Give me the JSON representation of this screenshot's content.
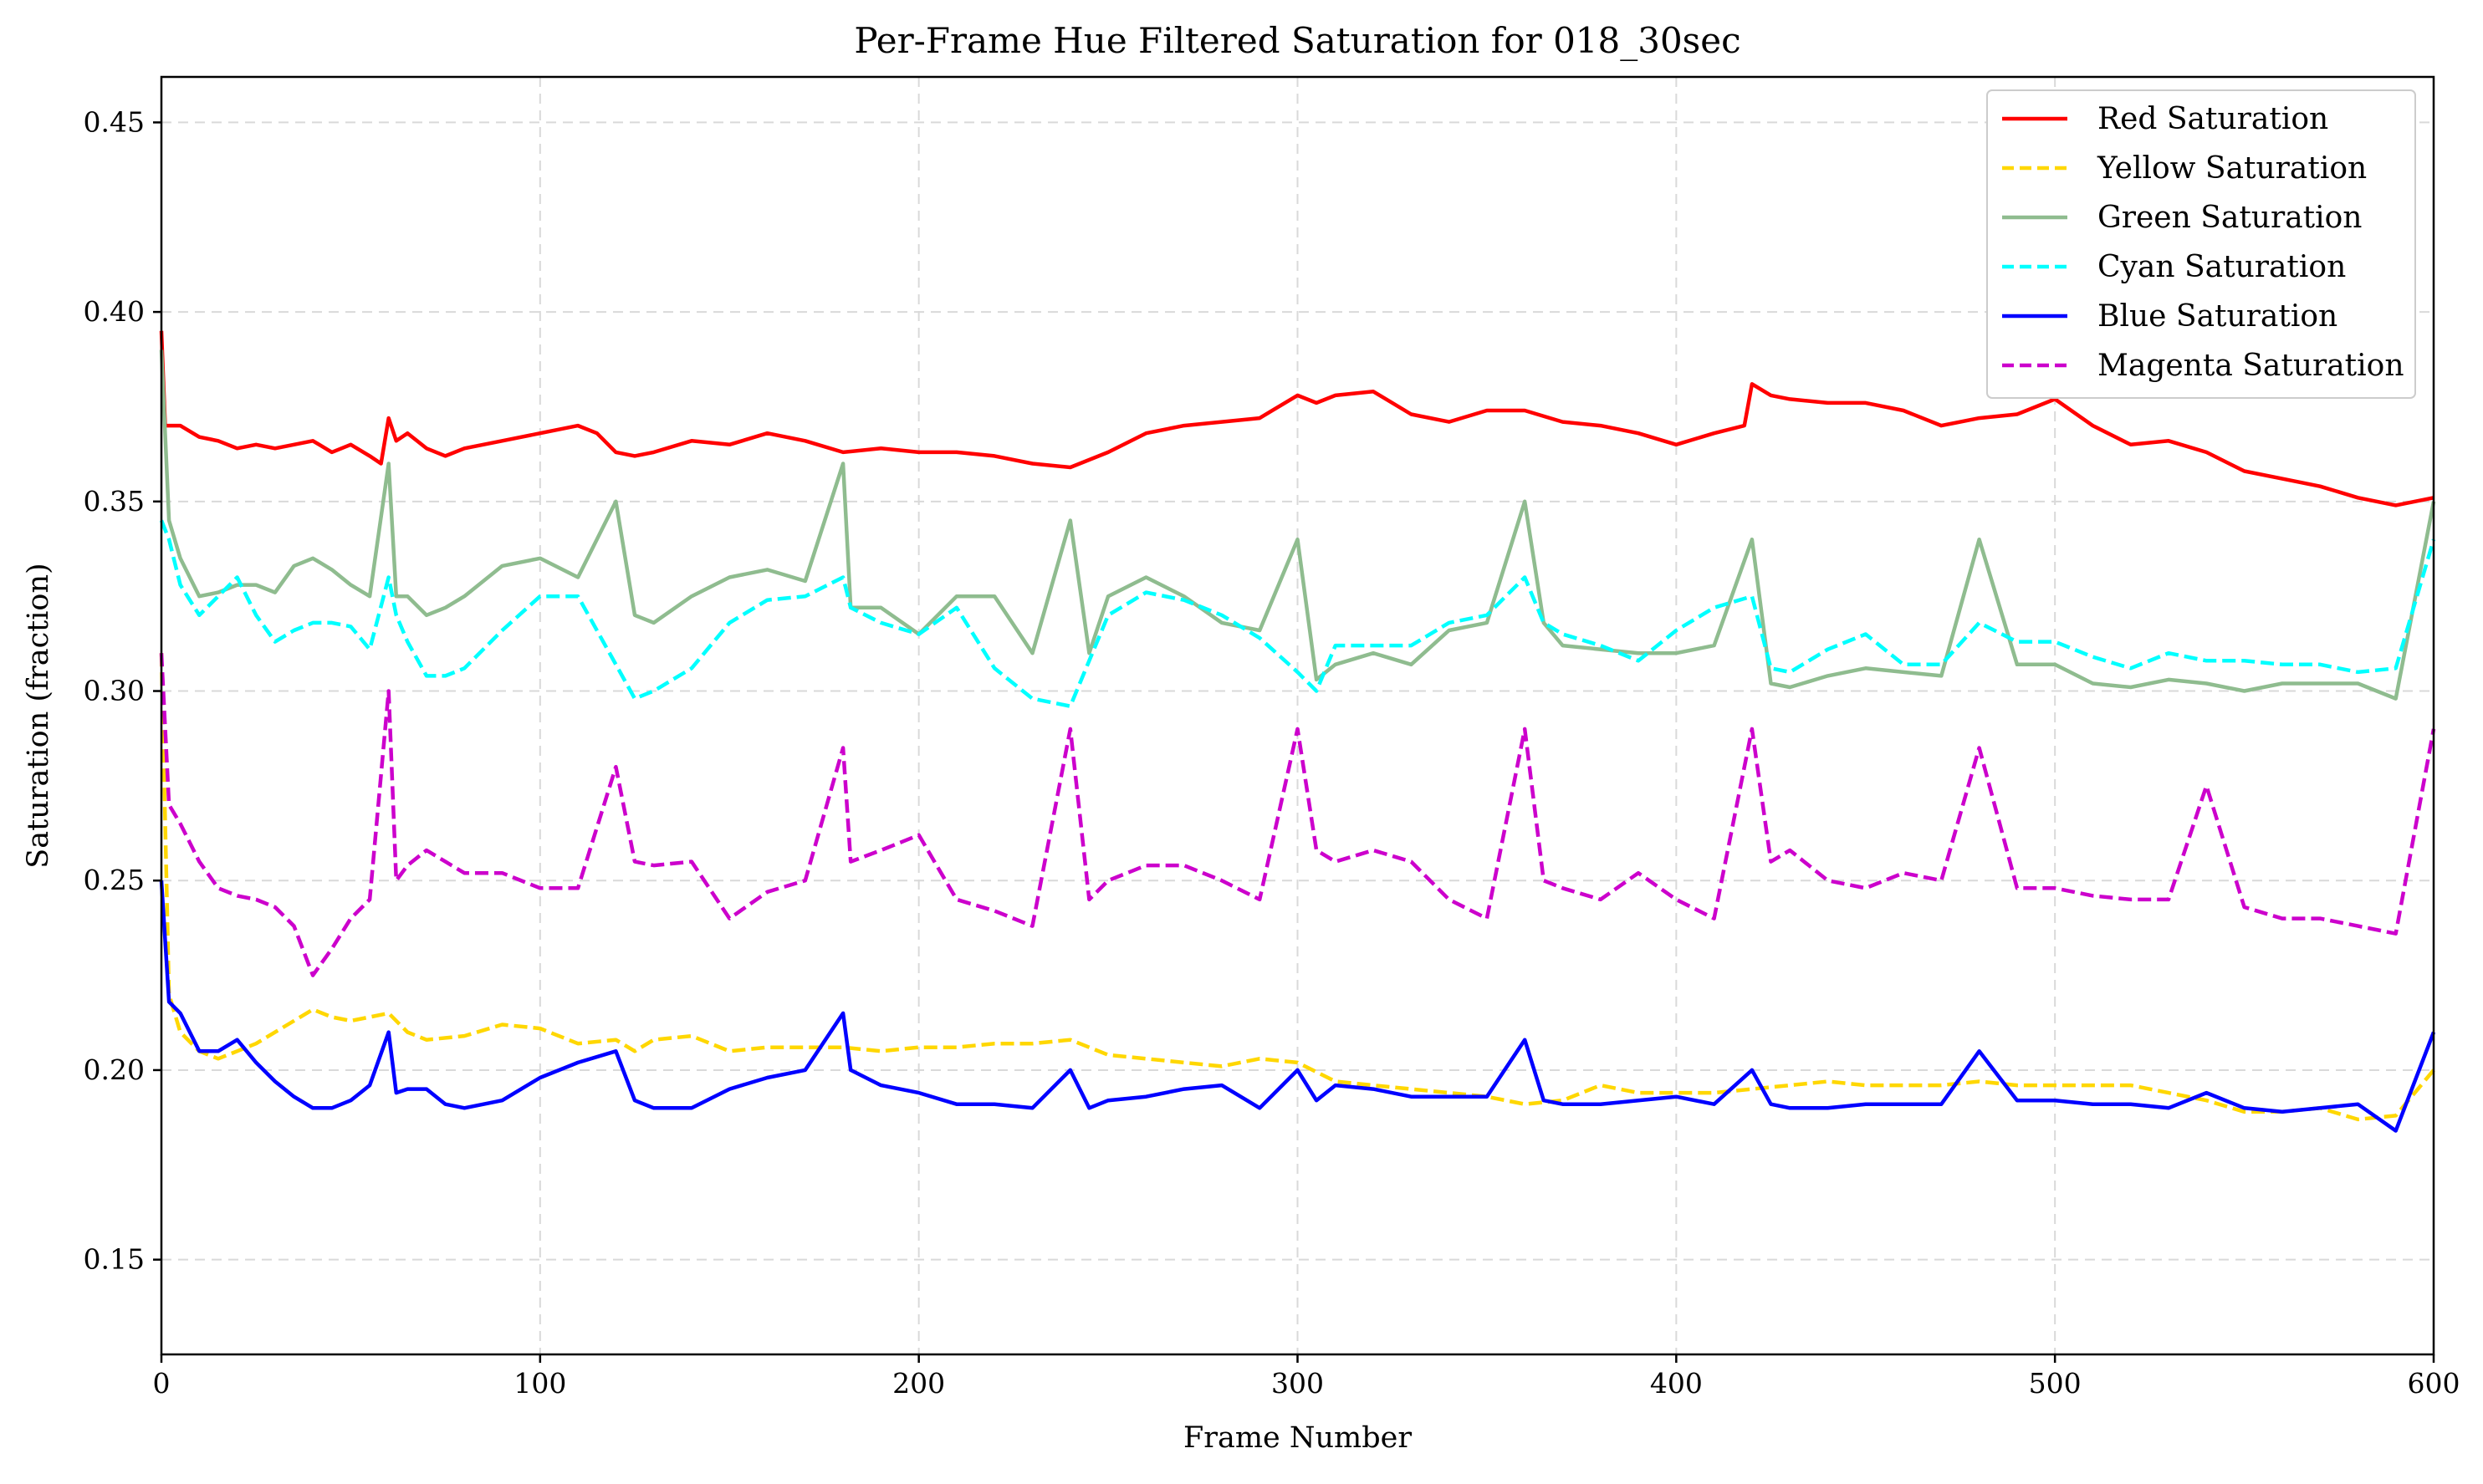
{
  "chart_data": {
    "type": "line",
    "title": "Per-Frame Hue Filtered Saturation for 018_30sec",
    "xlabel": "Frame Number",
    "ylabel": "Saturation (fraction)",
    "xlim": [
      0,
      600
    ],
    "ylim": [
      0.125,
      0.462
    ],
    "xticks": [
      0,
      100,
      200,
      300,
      400,
      500,
      600
    ],
    "xtick_labels": [
      "0",
      "100",
      "200",
      "300",
      "400",
      "500",
      "600"
    ],
    "yticks": [
      0.15,
      0.2,
      0.25,
      0.3,
      0.35,
      0.4,
      0.45
    ],
    "ytick_labels": [
      "0.15",
      "0.20",
      "0.25",
      "0.30",
      "0.35",
      "0.40",
      "0.45"
    ],
    "grid": true,
    "legend_position": "top-right",
    "series": [
      {
        "name": "Red Saturation",
        "color": "#ff0000",
        "dashed": false,
        "x": [
          0,
          1,
          5,
          10,
          15,
          20,
          25,
          30,
          35,
          40,
          45,
          50,
          55,
          58,
          60,
          62,
          65,
          70,
          75,
          80,
          90,
          100,
          110,
          115,
          120,
          125,
          130,
          140,
          150,
          160,
          170,
          180,
          190,
          200,
          210,
          220,
          230,
          240,
          250,
          260,
          270,
          280,
          290,
          300,
          305,
          310,
          320,
          330,
          340,
          350,
          360,
          370,
          380,
          390,
          400,
          410,
          418,
          420,
          425,
          430,
          440,
          450,
          460,
          470,
          480,
          490,
          500,
          510,
          520,
          530,
          540,
          550,
          560,
          570,
          580,
          590,
          600
        ],
        "y": [
          0.395,
          0.37,
          0.37,
          0.367,
          0.366,
          0.364,
          0.365,
          0.364,
          0.365,
          0.366,
          0.363,
          0.365,
          0.362,
          0.36,
          0.372,
          0.366,
          0.368,
          0.364,
          0.362,
          0.364,
          0.366,
          0.368,
          0.37,
          0.368,
          0.363,
          0.362,
          0.363,
          0.366,
          0.365,
          0.368,
          0.366,
          0.363,
          0.364,
          0.363,
          0.363,
          0.362,
          0.36,
          0.359,
          0.363,
          0.368,
          0.37,
          0.371,
          0.372,
          0.378,
          0.376,
          0.378,
          0.379,
          0.373,
          0.371,
          0.374,
          0.374,
          0.371,
          0.37,
          0.368,
          0.365,
          0.368,
          0.37,
          0.381,
          0.378,
          0.377,
          0.376,
          0.376,
          0.374,
          0.37,
          0.372,
          0.373,
          0.377,
          0.37,
          0.365,
          0.366,
          0.363,
          0.358,
          0.356,
          0.354,
          0.351,
          0.349,
          0.351
        ]
      },
      {
        "name": "Yellow Saturation",
        "color": "#ffd700",
        "dashed": true,
        "x": [
          0,
          2,
          5,
          10,
          15,
          20,
          25,
          30,
          35,
          40,
          45,
          50,
          55,
          60,
          65,
          70,
          80,
          90,
          100,
          110,
          120,
          125,
          130,
          140,
          150,
          160,
          170,
          180,
          190,
          200,
          210,
          220,
          230,
          240,
          245,
          250,
          260,
          270,
          280,
          290,
          300,
          310,
          320,
          330,
          340,
          350,
          360,
          370,
          380,
          390,
          400,
          410,
          420,
          430,
          440,
          450,
          460,
          470,
          480,
          490,
          500,
          510,
          520,
          530,
          540,
          550,
          560,
          570,
          580,
          590,
          600
        ],
        "y": [
          0.31,
          0.22,
          0.21,
          0.205,
          0.203,
          0.205,
          0.207,
          0.21,
          0.213,
          0.216,
          0.214,
          0.213,
          0.214,
          0.215,
          0.21,
          0.208,
          0.209,
          0.212,
          0.211,
          0.207,
          0.208,
          0.205,
          0.208,
          0.209,
          0.205,
          0.206,
          0.206,
          0.206,
          0.205,
          0.206,
          0.206,
          0.207,
          0.207,
          0.208,
          0.206,
          0.204,
          0.203,
          0.202,
          0.201,
          0.203,
          0.202,
          0.197,
          0.196,
          0.195,
          0.194,
          0.193,
          0.191,
          0.192,
          0.196,
          0.194,
          0.194,
          0.194,
          0.195,
          0.196,
          0.197,
          0.196,
          0.196,
          0.196,
          0.197,
          0.196,
          0.196,
          0.196,
          0.196,
          0.194,
          0.192,
          0.189,
          0.189,
          0.19,
          0.187,
          0.188,
          0.2
        ]
      },
      {
        "name": "Green Saturation",
        "color": "#8fbc8f",
        "dashed": false,
        "x": [
          0,
          2,
          5,
          10,
          15,
          20,
          25,
          30,
          35,
          40,
          45,
          50,
          55,
          60,
          62,
          65,
          70,
          75,
          80,
          90,
          100,
          110,
          120,
          125,
          130,
          140,
          150,
          160,
          170,
          180,
          182,
          190,
          200,
          210,
          220,
          230,
          240,
          245,
          250,
          260,
          270,
          280,
          290,
          300,
          305,
          310,
          320,
          330,
          340,
          350,
          360,
          365,
          370,
          380,
          390,
          400,
          410,
          420,
          425,
          430,
          440,
          450,
          460,
          470,
          480,
          490,
          500,
          510,
          520,
          530,
          540,
          550,
          560,
          570,
          580,
          590,
          600
        ],
        "y": [
          0.39,
          0.345,
          0.335,
          0.325,
          0.326,
          0.328,
          0.328,
          0.326,
          0.333,
          0.335,
          0.332,
          0.328,
          0.325,
          0.36,
          0.325,
          0.325,
          0.32,
          0.322,
          0.325,
          0.333,
          0.335,
          0.33,
          0.35,
          0.32,
          0.318,
          0.325,
          0.33,
          0.332,
          0.329,
          0.36,
          0.322,
          0.322,
          0.315,
          0.325,
          0.325,
          0.31,
          0.345,
          0.31,
          0.325,
          0.33,
          0.325,
          0.318,
          0.316,
          0.34,
          0.303,
          0.307,
          0.31,
          0.307,
          0.316,
          0.318,
          0.35,
          0.318,
          0.312,
          0.311,
          0.31,
          0.31,
          0.312,
          0.34,
          0.302,
          0.301,
          0.304,
          0.306,
          0.305,
          0.304,
          0.34,
          0.307,
          0.307,
          0.302,
          0.301,
          0.303,
          0.302,
          0.3,
          0.302,
          0.302,
          0.302,
          0.298,
          0.35
        ]
      },
      {
        "name": "Cyan Saturation",
        "color": "#00ffff",
        "dashed": true,
        "x": [
          0,
          2,
          5,
          10,
          15,
          20,
          25,
          30,
          35,
          40,
          45,
          50,
          55,
          60,
          62,
          65,
          70,
          75,
          80,
          90,
          100,
          110,
          120,
          125,
          130,
          140,
          150,
          160,
          170,
          180,
          182,
          190,
          200,
          210,
          220,
          230,
          240,
          245,
          250,
          260,
          270,
          280,
          290,
          300,
          305,
          310,
          320,
          330,
          340,
          350,
          360,
          365,
          370,
          380,
          390,
          400,
          410,
          420,
          425,
          430,
          440,
          450,
          460,
          470,
          480,
          490,
          500,
          510,
          520,
          530,
          540,
          550,
          560,
          570,
          580,
          590,
          600
        ],
        "y": [
          0.345,
          0.34,
          0.328,
          0.32,
          0.325,
          0.33,
          0.32,
          0.313,
          0.316,
          0.318,
          0.318,
          0.317,
          0.311,
          0.33,
          0.32,
          0.313,
          0.304,
          0.304,
          0.306,
          0.316,
          0.325,
          0.325,
          0.307,
          0.298,
          0.3,
          0.306,
          0.318,
          0.324,
          0.325,
          0.33,
          0.322,
          0.318,
          0.315,
          0.322,
          0.306,
          0.298,
          0.296,
          0.308,
          0.32,
          0.326,
          0.324,
          0.32,
          0.314,
          0.305,
          0.3,
          0.312,
          0.312,
          0.312,
          0.318,
          0.32,
          0.33,
          0.318,
          0.315,
          0.312,
          0.308,
          0.316,
          0.322,
          0.325,
          0.306,
          0.305,
          0.311,
          0.315,
          0.307,
          0.307,
          0.318,
          0.313,
          0.313,
          0.309,
          0.306,
          0.31,
          0.308,
          0.308,
          0.307,
          0.307,
          0.305,
          0.306,
          0.34
        ]
      },
      {
        "name": "Blue Saturation",
        "color": "#0000ff",
        "dashed": false,
        "x": [
          0,
          2,
          5,
          10,
          15,
          20,
          25,
          30,
          35,
          40,
          45,
          50,
          55,
          60,
          62,
          65,
          70,
          75,
          80,
          90,
          100,
          110,
          120,
          125,
          130,
          140,
          150,
          160,
          170,
          180,
          182,
          190,
          200,
          210,
          220,
          230,
          240,
          245,
          250,
          260,
          270,
          280,
          290,
          300,
          305,
          310,
          320,
          330,
          340,
          350,
          360,
          365,
          370,
          380,
          390,
          400,
          410,
          420,
          425,
          430,
          440,
          450,
          460,
          470,
          480,
          490,
          500,
          510,
          520,
          530,
          540,
          550,
          560,
          570,
          580,
          590,
          600
        ],
        "y": [
          0.25,
          0.218,
          0.215,
          0.205,
          0.205,
          0.208,
          0.202,
          0.197,
          0.193,
          0.19,
          0.19,
          0.192,
          0.196,
          0.21,
          0.194,
          0.195,
          0.195,
          0.191,
          0.19,
          0.192,
          0.198,
          0.202,
          0.205,
          0.192,
          0.19,
          0.19,
          0.195,
          0.198,
          0.2,
          0.215,
          0.2,
          0.196,
          0.194,
          0.191,
          0.191,
          0.19,
          0.2,
          0.19,
          0.192,
          0.193,
          0.195,
          0.196,
          0.19,
          0.2,
          0.192,
          0.196,
          0.195,
          0.193,
          0.193,
          0.193,
          0.208,
          0.192,
          0.191,
          0.191,
          0.192,
          0.193,
          0.191,
          0.2,
          0.191,
          0.19,
          0.19,
          0.191,
          0.191,
          0.191,
          0.205,
          0.192,
          0.192,
          0.191,
          0.191,
          0.19,
          0.194,
          0.19,
          0.189,
          0.19,
          0.191,
          0.184,
          0.21
        ]
      },
      {
        "name": "Magenta Saturation",
        "color": "#cc00cc",
        "dashed": true,
        "x": [
          0,
          2,
          5,
          10,
          15,
          20,
          25,
          30,
          35,
          40,
          45,
          50,
          55,
          60,
          62,
          65,
          70,
          75,
          80,
          90,
          100,
          110,
          120,
          125,
          130,
          140,
          150,
          160,
          170,
          180,
          182,
          190,
          200,
          210,
          220,
          230,
          240,
          245,
          250,
          260,
          270,
          280,
          290,
          300,
          305,
          310,
          320,
          330,
          340,
          350,
          360,
          365,
          370,
          380,
          390,
          400,
          410,
          420,
          425,
          430,
          440,
          450,
          460,
          470,
          480,
          490,
          500,
          510,
          520,
          530,
          540,
          550,
          560,
          570,
          580,
          590,
          600
        ],
        "y": [
          0.31,
          0.27,
          0.265,
          0.255,
          0.248,
          0.246,
          0.245,
          0.243,
          0.238,
          0.225,
          0.232,
          0.24,
          0.245,
          0.3,
          0.25,
          0.254,
          0.258,
          0.255,
          0.252,
          0.252,
          0.248,
          0.248,
          0.28,
          0.255,
          0.254,
          0.255,
          0.24,
          0.247,
          0.25,
          0.285,
          0.255,
          0.258,
          0.262,
          0.245,
          0.242,
          0.238,
          0.29,
          0.245,
          0.25,
          0.254,
          0.254,
          0.25,
          0.245,
          0.29,
          0.258,
          0.255,
          0.258,
          0.255,
          0.245,
          0.24,
          0.29,
          0.25,
          0.248,
          0.245,
          0.252,
          0.245,
          0.24,
          0.29,
          0.255,
          0.258,
          0.25,
          0.248,
          0.252,
          0.25,
          0.285,
          0.248,
          0.248,
          0.246,
          0.245,
          0.245,
          0.275,
          0.243,
          0.24,
          0.24,
          0.238,
          0.236,
          0.29
        ]
      }
    ]
  }
}
